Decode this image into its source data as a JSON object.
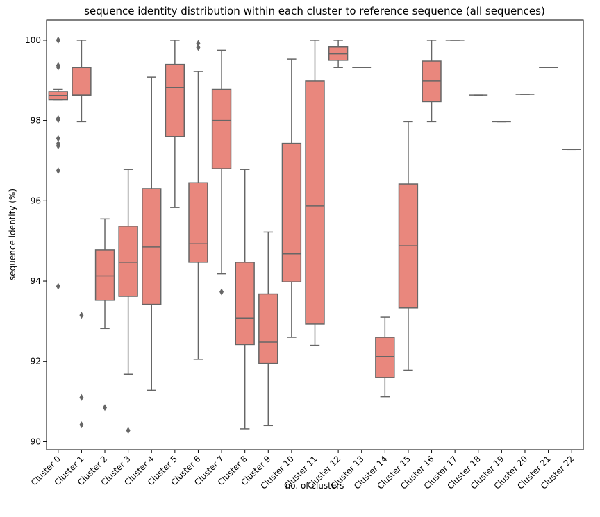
{
  "chart_data": {
    "type": "box",
    "title": "sequence identity distribution within each cluster to reference sequence (all sequences)",
    "xlabel": "no. of clusters",
    "ylabel": "sequence identity (%)",
    "ylim": [
      89.8,
      100.5
    ],
    "yticks": [
      90,
      92,
      94,
      96,
      98,
      100
    ],
    "box_color": "#E9877D",
    "line_color": "#666666",
    "grid": false,
    "categories": [
      "Cluster 0",
      "Cluster 1",
      "Cluster 2",
      "Cluster 3",
      "Cluster 4",
      "Cluster 5",
      "Cluster 6",
      "Cluster 7",
      "Cluster 8",
      "Cluster 9",
      "Cluster 10",
      "Cluster 11",
      "Cluster 12",
      "Cluster 13",
      "Cluster 14",
      "Cluster 15",
      "Cluster 16",
      "Cluster 17",
      "Cluster 18",
      "Cluster 19",
      "Cluster 20",
      "Cluster 21",
      "Cluster 22"
    ],
    "boxes": [
      {
        "whislo": 98.52,
        "q1": 98.52,
        "med": 98.62,
        "q3": 98.72,
        "whishi": 98.78,
        "fliers": [
          100.0,
          100.0,
          99.37,
          99.33,
          98.05,
          98.02,
          97.55,
          97.42,
          97.37,
          96.75,
          93.87
        ]
      },
      {
        "whislo": 97.97,
        "q1": 98.63,
        "med": 98.63,
        "q3": 99.32,
        "whishi": 100.0,
        "fliers": [
          93.15,
          91.1,
          90.42
        ]
      },
      {
        "whislo": 92.82,
        "q1": 93.52,
        "med": 94.13,
        "q3": 94.78,
        "whishi": 95.55,
        "fliers": [
          90.85
        ]
      },
      {
        "whislo": 91.68,
        "q1": 93.62,
        "med": 94.47,
        "q3": 95.37,
        "whishi": 96.78,
        "fliers": [
          90.28
        ]
      },
      {
        "whislo": 91.28,
        "q1": 93.42,
        "med": 94.85,
        "q3": 96.3,
        "whishi": 99.08,
        "fliers": []
      },
      {
        "whislo": 95.83,
        "q1": 97.6,
        "med": 98.82,
        "q3": 99.4,
        "whishi": 100.0,
        "fliers": []
      },
      {
        "whislo": 92.05,
        "q1": 94.47,
        "med": 94.93,
        "q3": 96.45,
        "whishi": 99.22,
        "fliers": [
          99.92,
          99.82
        ]
      },
      {
        "whislo": 94.18,
        "q1": 96.8,
        "med": 98.0,
        "q3": 98.78,
        "whishi": 99.75,
        "fliers": [
          93.73
        ]
      },
      {
        "whislo": 90.32,
        "q1": 92.42,
        "med": 93.08,
        "q3": 94.47,
        "whishi": 96.78,
        "fliers": []
      },
      {
        "whislo": 90.4,
        "q1": 91.95,
        "med": 92.48,
        "q3": 93.68,
        "whishi": 95.22,
        "fliers": []
      },
      {
        "whislo": 92.6,
        "q1": 93.98,
        "med": 94.68,
        "q3": 97.43,
        "whishi": 99.53,
        "fliers": []
      },
      {
        "whislo": 92.4,
        "q1": 92.93,
        "med": 95.87,
        "q3": 98.98,
        "whishi": 100.0,
        "fliers": []
      },
      {
        "whislo": 99.32,
        "q1": 99.5,
        "med": 99.66,
        "q3": 99.83,
        "whishi": 100.0,
        "fliers": []
      },
      {
        "whislo": 99.32,
        "q1": 99.32,
        "med": 99.32,
        "q3": 99.32,
        "whishi": 99.32,
        "fliers": []
      },
      {
        "whislo": 91.12,
        "q1": 91.6,
        "med": 92.12,
        "q3": 92.6,
        "whishi": 93.1,
        "fliers": []
      },
      {
        "whislo": 91.78,
        "q1": 93.33,
        "med": 94.88,
        "q3": 96.42,
        "whishi": 97.97,
        "fliers": []
      },
      {
        "whislo": 97.97,
        "q1": 98.47,
        "med": 98.98,
        "q3": 99.48,
        "whishi": 100.0,
        "fliers": []
      },
      {
        "whislo": 100.0,
        "q1": 100.0,
        "med": 100.0,
        "q3": 100.0,
        "whishi": 100.0,
        "fliers": []
      },
      {
        "whislo": 98.63,
        "q1": 98.63,
        "med": 98.63,
        "q3": 98.63,
        "whishi": 98.63,
        "fliers": []
      },
      {
        "whislo": 97.97,
        "q1": 97.97,
        "med": 97.97,
        "q3": 97.97,
        "whishi": 97.97,
        "fliers": []
      },
      {
        "whislo": 98.65,
        "q1": 98.65,
        "med": 98.65,
        "q3": 98.65,
        "whishi": 98.65,
        "fliers": []
      },
      {
        "whislo": 99.32,
        "q1": 99.32,
        "med": 99.32,
        "q3": 99.32,
        "whishi": 99.32,
        "fliers": []
      },
      {
        "whislo": 97.28,
        "q1": 97.28,
        "med": 97.28,
        "q3": 97.28,
        "whishi": 97.28,
        "fliers": []
      }
    ]
  }
}
